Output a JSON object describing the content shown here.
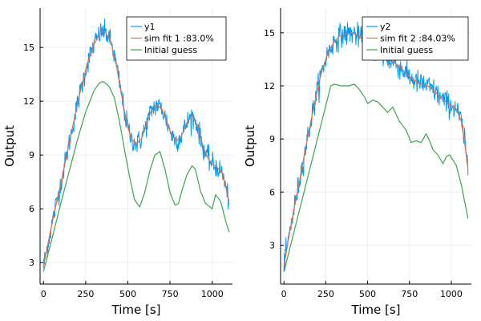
{
  "chart_data": [
    {
      "type": "line",
      "title": "",
      "xlabel": "Time [s]",
      "ylabel": "Output",
      "xlim": [
        -20,
        1120
      ],
      "ylim": [
        1.8,
        17.2
      ],
      "xticks": [
        0,
        250,
        500,
        750,
        1000
      ],
      "yticks": [
        3,
        6,
        9,
        12,
        15
      ],
      "grid": true,
      "legend_position": "top-right",
      "series": [
        {
          "name": "y1",
          "color": "#009af9",
          "style": "noisy",
          "noise": 0.55,
          "x": [
            0,
            30,
            60,
            100,
            140,
            180,
            220,
            260,
            300,
            330,
            350,
            370,
            400,
            430,
            460,
            490,
            520,
            550,
            580,
            610,
            640,
            670,
            700,
            730,
            760,
            790,
            820,
            850,
            880,
            910,
            940,
            970,
            1000,
            1030,
            1060,
            1080,
            1100
          ],
          "y": [
            2.8,
            4.2,
            5.6,
            7.3,
            9.1,
            10.9,
            12.6,
            14.1,
            15.2,
            15.7,
            15.9,
            15.8,
            15.3,
            14.1,
            12.5,
            10.9,
            9.9,
            9.6,
            9.9,
            10.7,
            11.5,
            11.8,
            11.6,
            10.9,
            10.1,
            9.8,
            10.1,
            10.8,
            11.2,
            10.7,
            9.6,
            8.9,
            8.5,
            8.3,
            8.0,
            7.2,
            6.4
          ]
        },
        {
          "name": " sim fit 1 :83.0%",
          "color": "#e26f46",
          "style": "smooth",
          "x": [
            0,
            30,
            60,
            100,
            140,
            180,
            220,
            260,
            300,
            330,
            350,
            370,
            400,
            430,
            460,
            490,
            520,
            550,
            580,
            610,
            640,
            670,
            700,
            730,
            760,
            790,
            820,
            850,
            880,
            910,
            940,
            970,
            1000,
            1030,
            1060,
            1080,
            1100
          ],
          "y": [
            2.8,
            4.2,
            5.6,
            7.3,
            9.1,
            10.9,
            12.6,
            14.1,
            15.2,
            15.7,
            15.9,
            15.8,
            15.3,
            14.1,
            12.5,
            10.9,
            9.9,
            9.6,
            9.9,
            10.7,
            11.5,
            11.8,
            11.6,
            10.9,
            10.1,
            9.8,
            10.1,
            10.8,
            11.2,
            10.7,
            9.6,
            8.9,
            8.5,
            8.3,
            8.0,
            7.2,
            6.4
          ]
        },
        {
          "name": "Initial guess",
          "color": "#3da44d",
          "style": "smooth",
          "x": [
            0,
            50,
            100,
            150,
            200,
            250,
            300,
            330,
            350,
            370,
            390,
            420,
            450,
            480,
            510,
            540,
            570,
            600,
            630,
            660,
            690,
            720,
            750,
            780,
            800,
            820,
            850,
            880,
            900,
            930,
            960,
            1000,
            1020,
            1050,
            1080,
            1100
          ],
          "y": [
            2.5,
            4.3,
            6.2,
            8.0,
            9.8,
            11.4,
            12.6,
            13.0,
            13.1,
            13.0,
            12.8,
            12.2,
            10.9,
            9.3,
            7.8,
            6.5,
            6.1,
            6.9,
            8.1,
            9.0,
            9.2,
            8.2,
            6.9,
            6.2,
            6.3,
            7.0,
            7.9,
            8.4,
            8.2,
            7.0,
            6.3,
            6.0,
            6.8,
            6.4,
            5.3,
            4.7
          ]
        }
      ]
    },
    {
      "type": "line",
      "title": "",
      "xlabel": "Time [s]",
      "ylabel": "Output",
      "xlim": [
        -20,
        1120
      ],
      "ylim": [
        0.8,
        16.4
      ],
      "xticks": [
        0,
        250,
        500,
        750,
        1000
      ],
      "yticks": [
        3,
        6,
        9,
        12,
        15
      ],
      "grid": true,
      "legend_position": "top-right",
      "series": [
        {
          "name": "y2",
          "color": "#009af9",
          "style": "noisy",
          "noise": 0.6,
          "x": [
            0,
            30,
            60,
            100,
            140,
            180,
            220,
            260,
            300,
            330,
            360,
            400,
            430,
            460,
            500,
            540,
            580,
            620,
            660,
            700,
            740,
            780,
            820,
            860,
            900,
            940,
            980,
            1000,
            1030,
            1060,
            1080,
            1100
          ],
          "y": [
            1.8,
            3.5,
            5.0,
            7.0,
            9.0,
            10.9,
            12.6,
            13.8,
            14.5,
            14.8,
            14.9,
            15.0,
            14.9,
            14.7,
            14.5,
            14.1,
            13.7,
            13.5,
            13.3,
            13.0,
            12.6,
            12.3,
            12.1,
            12.0,
            11.7,
            11.3,
            11.0,
            10.9,
            10.7,
            10.0,
            8.8,
            7.3
          ]
        },
        {
          "name": " sim fit 2 :84.03%",
          "color": "#e26f46",
          "style": "smooth",
          "x": [
            0,
            30,
            60,
            100,
            140,
            180,
            220,
            260,
            300,
            330,
            360,
            400,
            430,
            460,
            500,
            540,
            580,
            620,
            660,
            700,
            740,
            780,
            820,
            860,
            900,
            940,
            980,
            1000,
            1030,
            1060,
            1080,
            1100
          ],
          "y": [
            1.8,
            3.5,
            5.0,
            7.0,
            9.0,
            10.9,
            12.6,
            13.8,
            14.5,
            14.8,
            14.9,
            15.0,
            14.9,
            14.7,
            14.5,
            14.1,
            13.7,
            13.5,
            13.3,
            13.0,
            12.6,
            12.3,
            12.1,
            12.0,
            11.7,
            11.3,
            11.0,
            10.9,
            10.7,
            10.0,
            8.8,
            7.3
          ]
        },
        {
          "name": "Initial guess",
          "color": "#3da44d",
          "style": "smooth",
          "x": [
            0,
            280,
            300,
            340,
            390,
            420,
            450,
            480,
            500,
            530,
            560,
            580,
            620,
            650,
            690,
            730,
            760,
            790,
            820,
            850,
            870,
            890,
            920,
            950,
            970,
            990,
            1030,
            1060,
            1100
          ],
          "y": [
            1.5,
            12.0,
            12.1,
            12.0,
            12.0,
            12.1,
            11.8,
            11.4,
            11.0,
            11.2,
            11.1,
            10.9,
            10.5,
            10.8,
            10.0,
            9.5,
            8.8,
            8.9,
            8.8,
            9.3,
            8.9,
            8.4,
            8.1,
            7.6,
            8.0,
            8.1,
            7.5,
            6.4,
            4.5
          ]
        }
      ]
    }
  ]
}
